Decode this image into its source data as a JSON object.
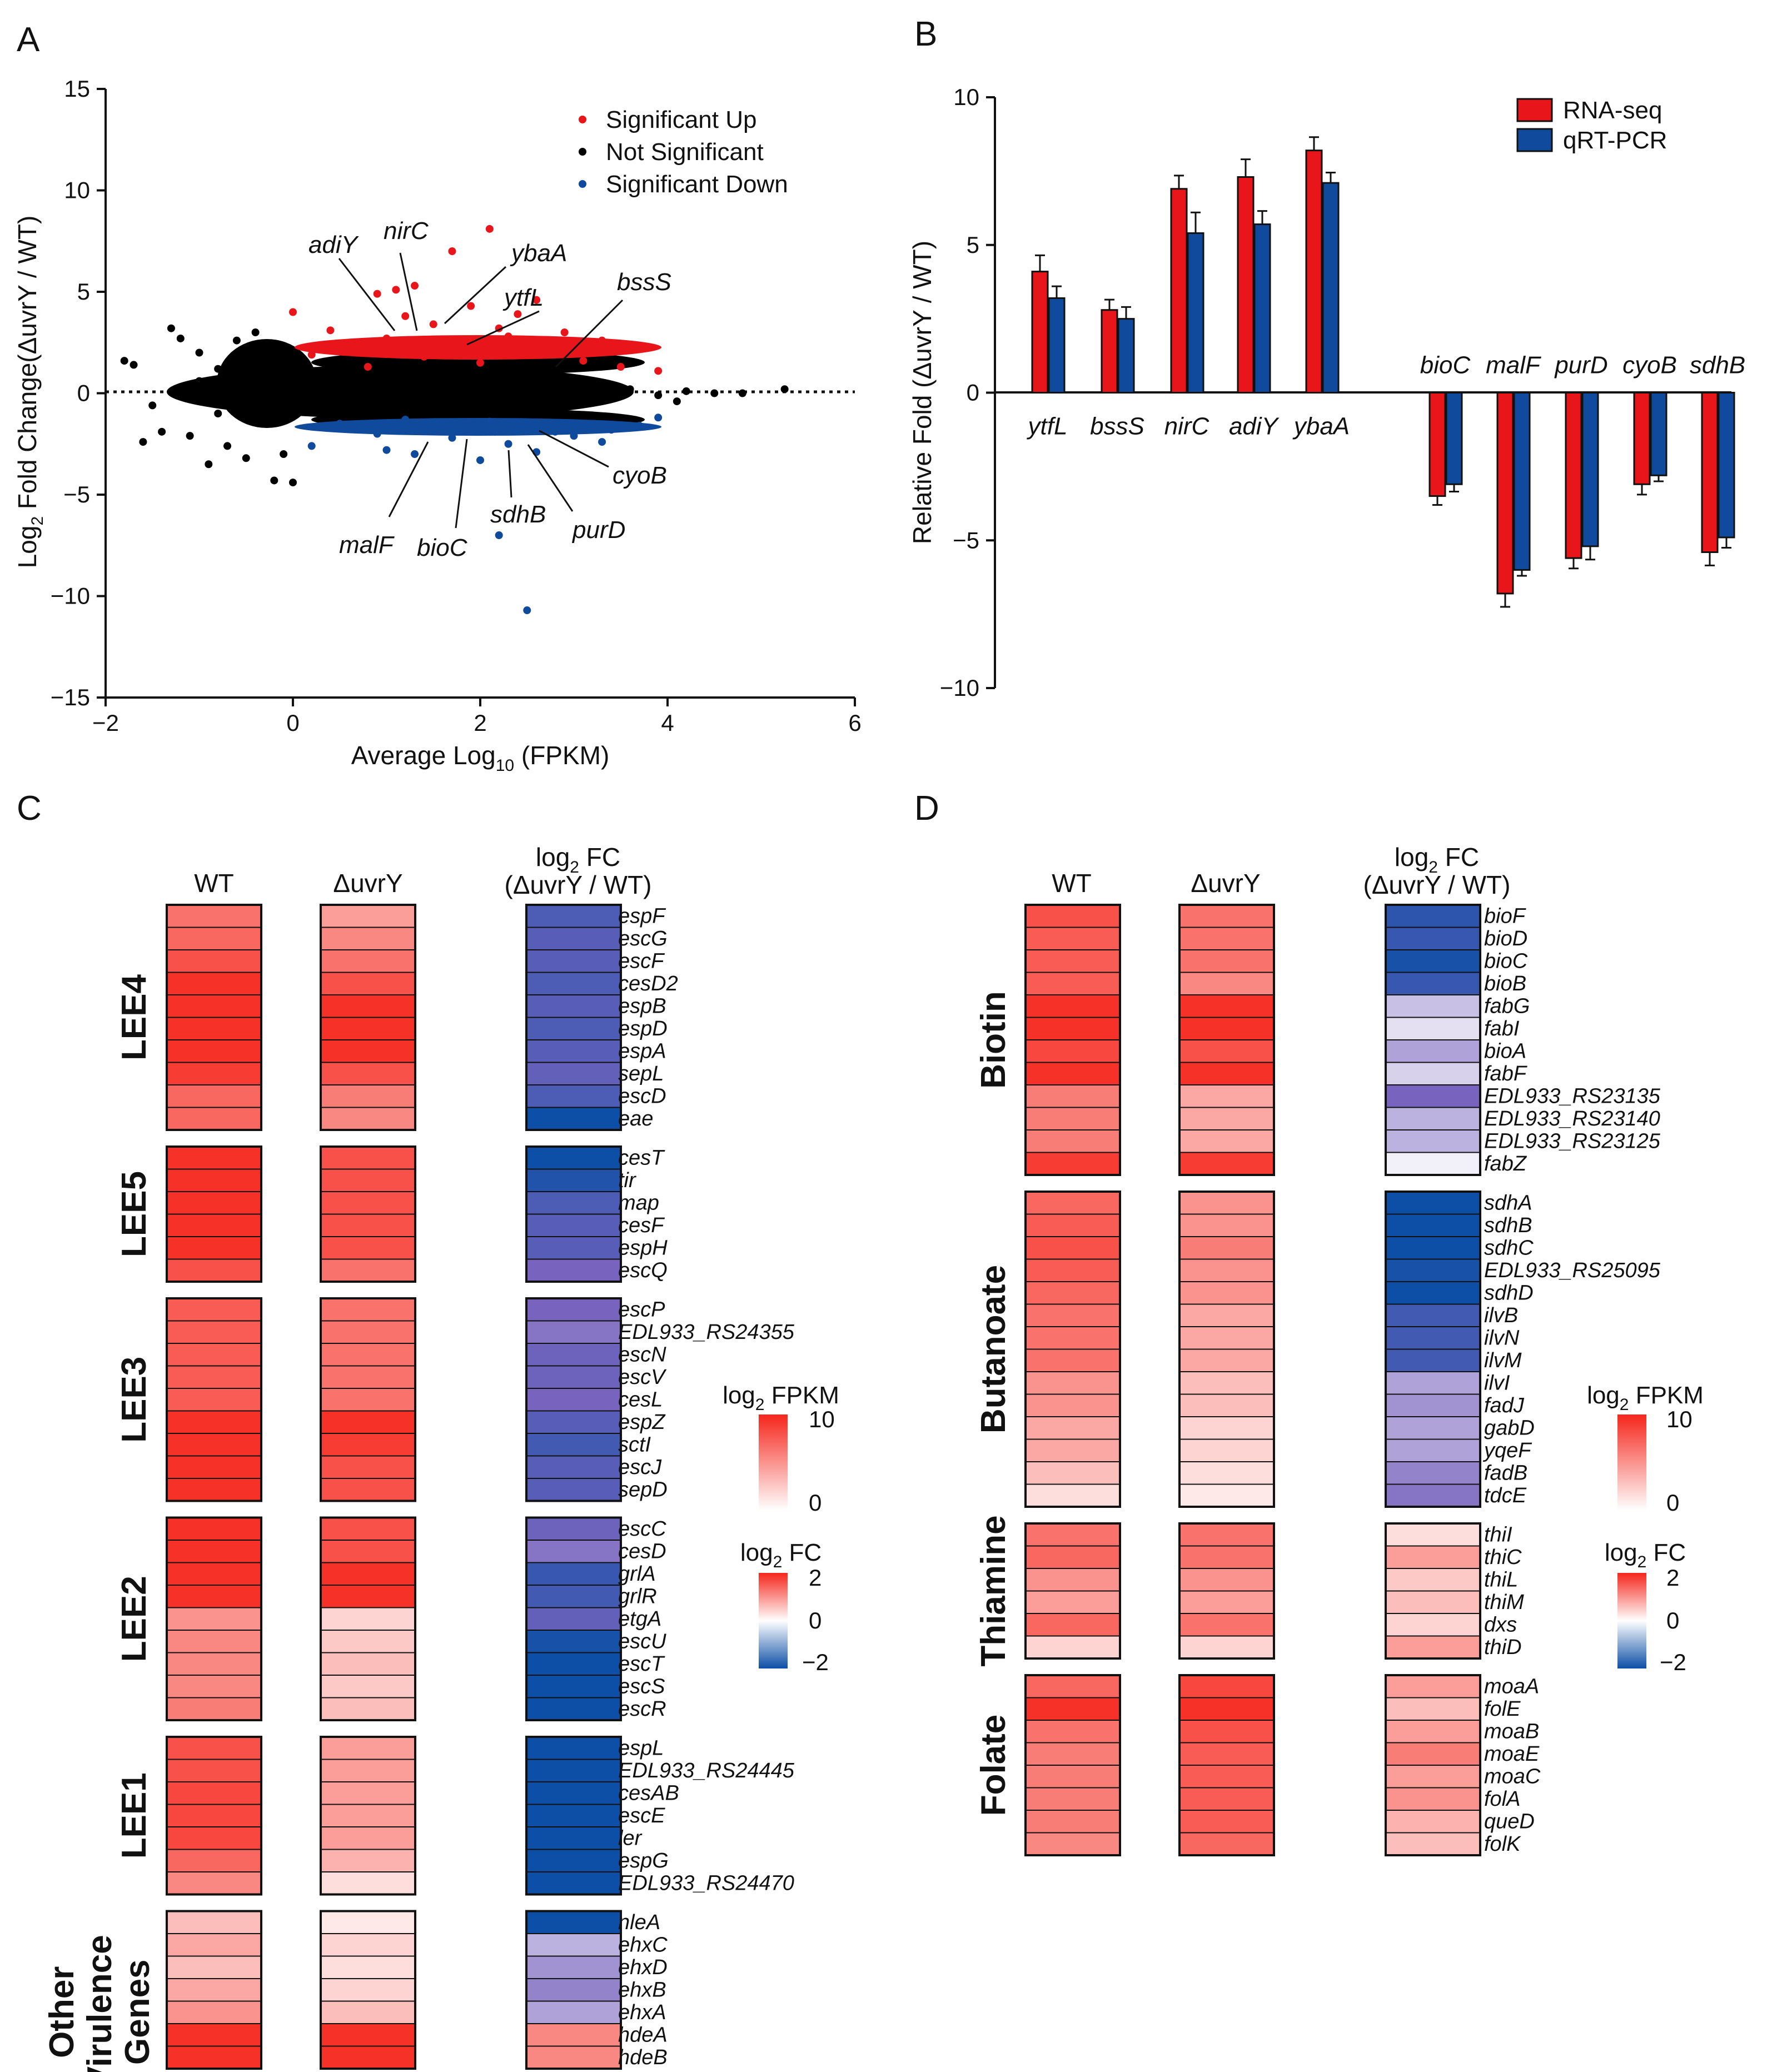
{
  "colors": {
    "up": "#e8151b",
    "down": "#0f4a9c",
    "ns": "#000000",
    "rna": "#e8151b",
    "qpcr": "#0f4a9c",
    "fpkm_hi": "#f5261c",
    "fc_lo": "#0d4fa6"
  },
  "panels": {
    "a": "A",
    "b": "B",
    "c": "C",
    "d": "D"
  },
  "panel_a": {
    "xlabel_main": "Average Log",
    "xlabel_sub": "10",
    "xlabel_tail": " (FPKM)",
    "ylabel_main": "Log",
    "ylabel_sub": "2",
    "ylabel_tail": " Fold Change(ΔuvrY / WT)",
    "legend": [
      "Significant Up",
      "Not Significant",
      "Significant Down"
    ]
  },
  "panel_b": {
    "ylabel": "Relative Fold (ΔuvrY / WT)",
    "legend": [
      "RNA-seq",
      "qRT-PCR"
    ]
  },
  "heat_common": {
    "col_wt": "WT",
    "col_mut": "ΔuvrY",
    "fc_header_1_main": "log",
    "fc_header_1_sub": "2",
    "fc_header_1_tail": " FC",
    "fc_header_2": "(ΔuvrY / WT)",
    "fpkm_legend_main": "log",
    "fpkm_legend_sub": "2",
    "fpkm_legend_tail": " FPKM",
    "fc_legend_main": "log",
    "fc_legend_sub": "2",
    "fc_legend_tail": " FC",
    "fpkm_ticks": [
      "10",
      "0"
    ],
    "fc_ticks": [
      "2",
      "0",
      "−2"
    ]
  },
  "chart_data": [
    {
      "type": "scatter",
      "title": "",
      "xlabel": "Average Log10 (FPKM)",
      "ylabel": "Log2 Fold Change(ΔuvrY / WT)",
      "xlim": [
        -2,
        6
      ],
      "ylim": [
        -15,
        15
      ],
      "xticks": [
        "−2",
        "0",
        "2",
        "4",
        "6"
      ],
      "yticks": [
        "15",
        "10",
        "5",
        "0",
        "−5",
        "−10",
        "−15"
      ],
      "series": [
        {
          "name": "Significant Up",
          "points": [
            [
              2.1,
              8.1
            ],
            [
              1.7,
              7.0
            ],
            [
              1.1,
              5.1
            ],
            [
              1.3,
              5.3
            ],
            [
              0.9,
              4.9
            ],
            [
              0.0,
              4.0
            ],
            [
              2.6,
              4.6
            ],
            [
              1.9,
              4.3
            ],
            [
              2.4,
              3.9
            ],
            [
              1.5,
              3.4
            ],
            [
              0.4,
              3.1
            ],
            [
              2.9,
              3.0
            ],
            [
              2.2,
              3.2
            ],
            [
              3.3,
              2.6
            ],
            [
              3.6,
              2.2
            ],
            [
              1.0,
              2.7
            ],
            [
              0.6,
              2.3
            ],
            [
              2.8,
              2.0
            ],
            [
              3.1,
              1.6
            ],
            [
              1.4,
              1.8
            ],
            [
              2.0,
              1.5
            ],
            [
              0.8,
              1.3
            ],
            [
              3.9,
              1.1
            ],
            [
              3.5,
              1.3
            ],
            [
              0.2,
              1.9
            ],
            [
              2.5,
              2.4
            ],
            [
              1.6,
              2.6
            ],
            [
              3.0,
              2.3
            ],
            [
              1.2,
              3.8
            ],
            [
              2.3,
              2.8
            ]
          ]
        },
        {
          "name": "Significant Down",
          "points": [
            [
              2.5,
              -10.7
            ],
            [
              2.2,
              -7.0
            ],
            [
              1.3,
              -3.0
            ],
            [
              0.2,
              -2.6
            ],
            [
              2.0,
              -3.3
            ],
            [
              2.6,
              -2.9
            ],
            [
              3.3,
              -2.4
            ],
            [
              1.7,
              -2.2
            ],
            [
              0.9,
              -2.0
            ],
            [
              3.0,
              -2.1
            ],
            [
              2.3,
              -2.5
            ],
            [
              1.0,
              -2.8
            ],
            [
              3.7,
              -1.6
            ],
            [
              1.5,
              -1.7
            ],
            [
              2.8,
              -1.9
            ],
            [
              0.5,
              -1.5
            ],
            [
              3.9,
              -1.2
            ],
            [
              2.1,
              -1.4
            ],
            [
              1.2,
              -1.3
            ],
            [
              3.4,
              -1.8
            ]
          ]
        },
        {
          "name": "Not Significant",
          "points": [
            [
              -1.8,
              1.6
            ],
            [
              -1.7,
              1.4
            ],
            [
              -1.3,
              3.2
            ],
            [
              -1.2,
              2.7
            ],
            [
              -1.0,
              2.0
            ],
            [
              -0.8,
              1.2
            ],
            [
              -0.6,
              2.6
            ],
            [
              -0.4,
              3.0
            ],
            [
              -0.2,
              2.3
            ],
            [
              -1.6,
              -2.4
            ],
            [
              -1.4,
              -1.9
            ],
            [
              -1.1,
              -2.1
            ],
            [
              -0.9,
              -3.5
            ],
            [
              -0.7,
              -2.6
            ],
            [
              -0.5,
              -3.2
            ],
            [
              -0.2,
              -4.3
            ],
            [
              -0.1,
              -3.0
            ],
            [
              0.0,
              -4.4
            ],
            [
              -0.8,
              -1.0
            ],
            [
              -0.4,
              -0.8
            ],
            [
              -1.5,
              -0.6
            ],
            [
              -1.0,
              0.6
            ],
            [
              -0.3,
              0.7
            ],
            [
              0.3,
              0.4
            ],
            [
              0.6,
              -0.3
            ],
            [
              1.0,
              0.2
            ],
            [
              1.3,
              -0.2
            ],
            [
              1.6,
              0.3
            ],
            [
              2.0,
              -0.1
            ],
            [
              2.3,
              0.2
            ],
            [
              2.7,
              -0.2
            ],
            [
              3.0,
              0.1
            ],
            [
              3.3,
              -0.1
            ],
            [
              3.6,
              0.2
            ],
            [
              3.9,
              -0.1
            ],
            [
              4.2,
              0.1
            ],
            [
              4.5,
              0.0
            ],
            [
              4.8,
              0.0
            ],
            [
              5.25,
              0.2
            ],
            [
              4.1,
              -0.4
            ]
          ]
        }
      ],
      "annotations": [
        "adiY",
        "nirC",
        "ybaA",
        "ytfL",
        "bssS",
        "cyoB",
        "purD",
        "sdhB",
        "bioC",
        "malF"
      ]
    },
    {
      "type": "bar",
      "title": "",
      "xlabel": "",
      "ylabel": "Relative Fold (ΔuvrY / WT)",
      "ylim": [
        -10,
        10
      ],
      "yticks": [
        "10",
        "5",
        "0",
        "−5",
        "−10"
      ],
      "categories": [
        "ytfL",
        "bssS",
        "nirC",
        "adiY",
        "ybaA",
        "bioC",
        "malF",
        "purD",
        "cyoB",
        "sdhB"
      ],
      "series": [
        {
          "name": "RNA-seq",
          "values": [
            4.1,
            2.8,
            6.9,
            7.3,
            8.2,
            -3.5,
            -6.8,
            -5.6,
            -3.1,
            -5.4
          ],
          "errors": [
            0.55,
            0.35,
            0.45,
            0.6,
            0.45,
            0.3,
            0.45,
            0.35,
            0.35,
            0.45
          ]
        },
        {
          "name": "qRT-PCR",
          "values": [
            3.2,
            2.5,
            5.4,
            5.7,
            7.1,
            -3.1,
            -6.0,
            -5.2,
            -2.8,
            -4.9
          ],
          "errors": [
            0.4,
            0.4,
            0.7,
            0.45,
            0.35,
            0.25,
            0.2,
            0.45,
            0.2,
            0.35
          ]
        }
      ]
    },
    {
      "type": "heatmap",
      "title": "Panel C",
      "groups": [
        {
          "name": "LEE4",
          "genes": [
            "espF",
            "escG",
            "escF",
            "cesD2",
            "espB",
            "espD",
            "espA",
            "sepL",
            "escD",
            "eae"
          ],
          "wt": [
            6.5,
            7,
            8,
            9.5,
            9.5,
            9.5,
            9.5,
            9,
            7,
            7
          ],
          "mut": [
            4.5,
            5.5,
            6.5,
            8,
            9.5,
            9.5,
            9.5,
            8,
            6,
            5.5
          ],
          "fc": [
            -1.4,
            -1.3,
            -1.3,
            -1.4,
            -1.3,
            -1.4,
            -1.3,
            -1.2,
            -1.4,
            -2
          ]
        },
        {
          "name": "LEE5",
          "genes": [
            "cesT",
            "tir",
            "map",
            "cesF",
            "espH",
            "escQ"
          ],
          "wt": [
            9.5,
            9.5,
            9.5,
            9.5,
            9.5,
            8
          ],
          "mut": [
            8,
            8,
            8,
            8,
            8,
            6.5
          ],
          "fc": [
            -2,
            -1.8,
            -1.4,
            -1.3,
            -1.3,
            -1.0
          ]
        },
        {
          "name": "LEE3",
          "genes": [
            "escP",
            "EDL933_RS24355",
            "escN",
            "escV",
            "cesL",
            "espZ",
            "sctI",
            "escJ",
            "sepD"
          ],
          "wt": [
            7.5,
            7.5,
            7.5,
            7.5,
            7.5,
            9.5,
            9.5,
            9.5,
            9.5
          ],
          "mut": [
            6.5,
            6.5,
            6.5,
            6.5,
            6.5,
            9.5,
            9,
            8,
            8
          ],
          "fc": [
            -1.0,
            -0.9,
            -1.1,
            -1.1,
            -1.0,
            -1.3,
            -1.5,
            -1.3,
            -1.3
          ]
        },
        {
          "name": "LEE2",
          "genes": [
            "escC",
            "cesD",
            "grlA",
            "grlR",
            "etgA",
            "escU",
            "escT",
            "escS",
            "escR"
          ],
          "wt": [
            9.5,
            9.5,
            9.5,
            9.5,
            5,
            5.5,
            5.5,
            5.5,
            6
          ],
          "mut": [
            8,
            8,
            9.5,
            9.5,
            2,
            2.5,
            3,
            2.5,
            3
          ],
          "fc": [
            -1.1,
            -0.9,
            -1.6,
            -1.5,
            -1.2,
            -1.9,
            -2,
            -2,
            -2
          ]
        },
        {
          "name": "LEE1",
          "genes": [
            "espL",
            "EDL933_RS24445",
            "cesAB",
            "escE",
            "ler",
            "espG",
            "EDL933_RS24470"
          ],
          "wt": [
            8,
            8,
            8.5,
            8.5,
            8.5,
            7,
            5.5
          ],
          "mut": [
            4.5,
            4.5,
            4.5,
            4.5,
            4.5,
            3.5,
            1.5
          ],
          "fc": [
            -2,
            -2,
            -2,
            -2,
            -2,
            -2,
            -2
          ]
        },
        {
          "name": "Other Virulence Genes",
          "genes": [
            "nleA",
            "ehxC",
            "ehxD",
            "ehxB",
            "ehxA",
            "hdeA",
            "hdeB"
          ],
          "wt": [
            3,
            4,
            3,
            4,
            5,
            9.5,
            9.5
          ],
          "mut": [
            1,
            2,
            1.5,
            2,
            3,
            9.5,
            9.5
          ],
          "fc": [
            -2,
            -0.5,
            -0.7,
            -0.8,
            -0.6,
            1.1,
            1.1
          ]
        }
      ]
    },
    {
      "type": "heatmap",
      "title": "Panel D",
      "groups": [
        {
          "name": "Biotin",
          "genes": [
            "bioF",
            "bioD",
            "bioC",
            "bioB",
            "fabG",
            "fabI",
            "bioA",
            "fabF",
            "EDL933_RS23135",
            "EDL933_RS23140",
            "EDL933_RS23125",
            "fabZ"
          ],
          "wt": [
            8,
            7.5,
            7.5,
            7.5,
            9.5,
            9.5,
            8.5,
            9.5,
            6,
            6,
            6,
            9
          ],
          "mut": [
            6.5,
            6.5,
            6.5,
            5.5,
            9.5,
            9.5,
            8,
            9.5,
            4,
            4,
            4,
            9
          ],
          "fc": [
            -1.7,
            -1.6,
            -1.9,
            -1.6,
            -0.4,
            -0.2,
            -0.6,
            -0.3,
            -1.0,
            -0.5,
            -0.5,
            -0.1
          ]
        },
        {
          "name": "Butanoate",
          "genes": [
            "sdhA",
            "sdhB",
            "sdhC",
            "EDL933_RS25095",
            "sdhD",
            "ilvB",
            "ilvN",
            "ilvM",
            "ilvI",
            "fadJ",
            "gabD",
            "yqeF",
            "fadB",
            "tdcE"
          ],
          "wt": [
            7,
            7.5,
            8,
            7.5,
            7,
            6.5,
            6.5,
            6.5,
            5,
            5,
            4,
            4,
            3,
            1.5
          ],
          "mut": [
            5,
            5,
            6,
            5,
            5,
            4,
            4,
            4,
            3,
            3,
            2,
            2,
            1.5,
            1
          ],
          "fc": [
            -2,
            -2,
            -2,
            -1.9,
            -2,
            -1.5,
            -1.5,
            -1.5,
            -0.6,
            -0.7,
            -0.6,
            -0.6,
            -0.8,
            -0.9
          ]
        },
        {
          "name": "Thiamine",
          "genes": [
            "thiI",
            "thiC",
            "thiL",
            "thiM",
            "dxs",
            "thiD"
          ],
          "wt": [
            6.5,
            7,
            5,
            4.5,
            7,
            2
          ],
          "mut": [
            6.5,
            6.5,
            5,
            4.5,
            6.5,
            2
          ],
          "fc": [
            0.3,
            0.9,
            0.5,
            0.6,
            0.4,
            0.9
          ]
        },
        {
          "name": "Folate",
          "genes": [
            "moaA",
            "folE",
            "moaB",
            "moaE",
            "moaC",
            "folA",
            "queD",
            "folK"
          ],
          "wt": [
            7,
            9.5,
            6.5,
            6,
            6,
            6,
            6,
            5.5
          ],
          "mut": [
            8.5,
            9.5,
            8,
            7.5,
            7.5,
            7.5,
            7.5,
            7
          ],
          "fc": [
            0.9,
            0.6,
            0.9,
            1.2,
            0.9,
            1.0,
            0.7,
            0.6
          ]
        }
      ]
    }
  ]
}
